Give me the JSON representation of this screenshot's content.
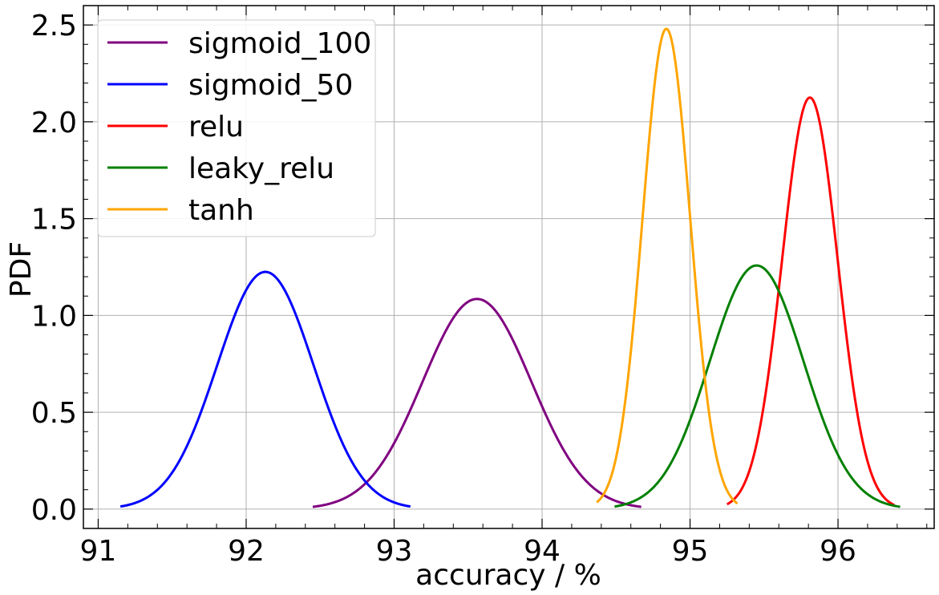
{
  "chart_data": {
    "type": "line",
    "title": "",
    "xlabel": "accuracy / %",
    "ylabel": "PDF",
    "xlim": [
      90.9,
      96.65
    ],
    "ylim": [
      -0.1,
      2.6
    ],
    "xticks": [
      91,
      92,
      93,
      94,
      95,
      96
    ],
    "yticks": [
      0.0,
      0.5,
      1.0,
      1.5,
      2.0,
      2.5
    ],
    "xtick_labels": [
      "91",
      "92",
      "93",
      "94",
      "95",
      "96"
    ],
    "ytick_labels": [
      "0.0",
      "0.5",
      "1.0",
      "1.5",
      "2.0",
      "2.5"
    ],
    "grid": true,
    "legend_position": "top-left",
    "series": [
      {
        "name": "sigmoid_100",
        "color": "#800080",
        "mean": 93.56,
        "peak": 1.085,
        "x_range": [
          92.45,
          94.67
        ]
      },
      {
        "name": "sigmoid_50",
        "color": "#0000ff",
        "mean": 92.13,
        "peak": 1.225,
        "x_range": [
          91.15,
          93.11
        ]
      },
      {
        "name": "relu",
        "color": "#ff0000",
        "mean": 95.81,
        "peak": 2.125,
        "x_range": [
          95.25,
          96.38
        ]
      },
      {
        "name": "leaky_relu",
        "color": "#008000",
        "mean": 95.45,
        "peak": 1.258,
        "x_range": [
          94.49,
          96.42
        ]
      },
      {
        "name": "tanh",
        "color": "#ffa500",
        "mean": 94.84,
        "peak": 2.48,
        "x_range": [
          94.37,
          95.32
        ]
      }
    ]
  }
}
